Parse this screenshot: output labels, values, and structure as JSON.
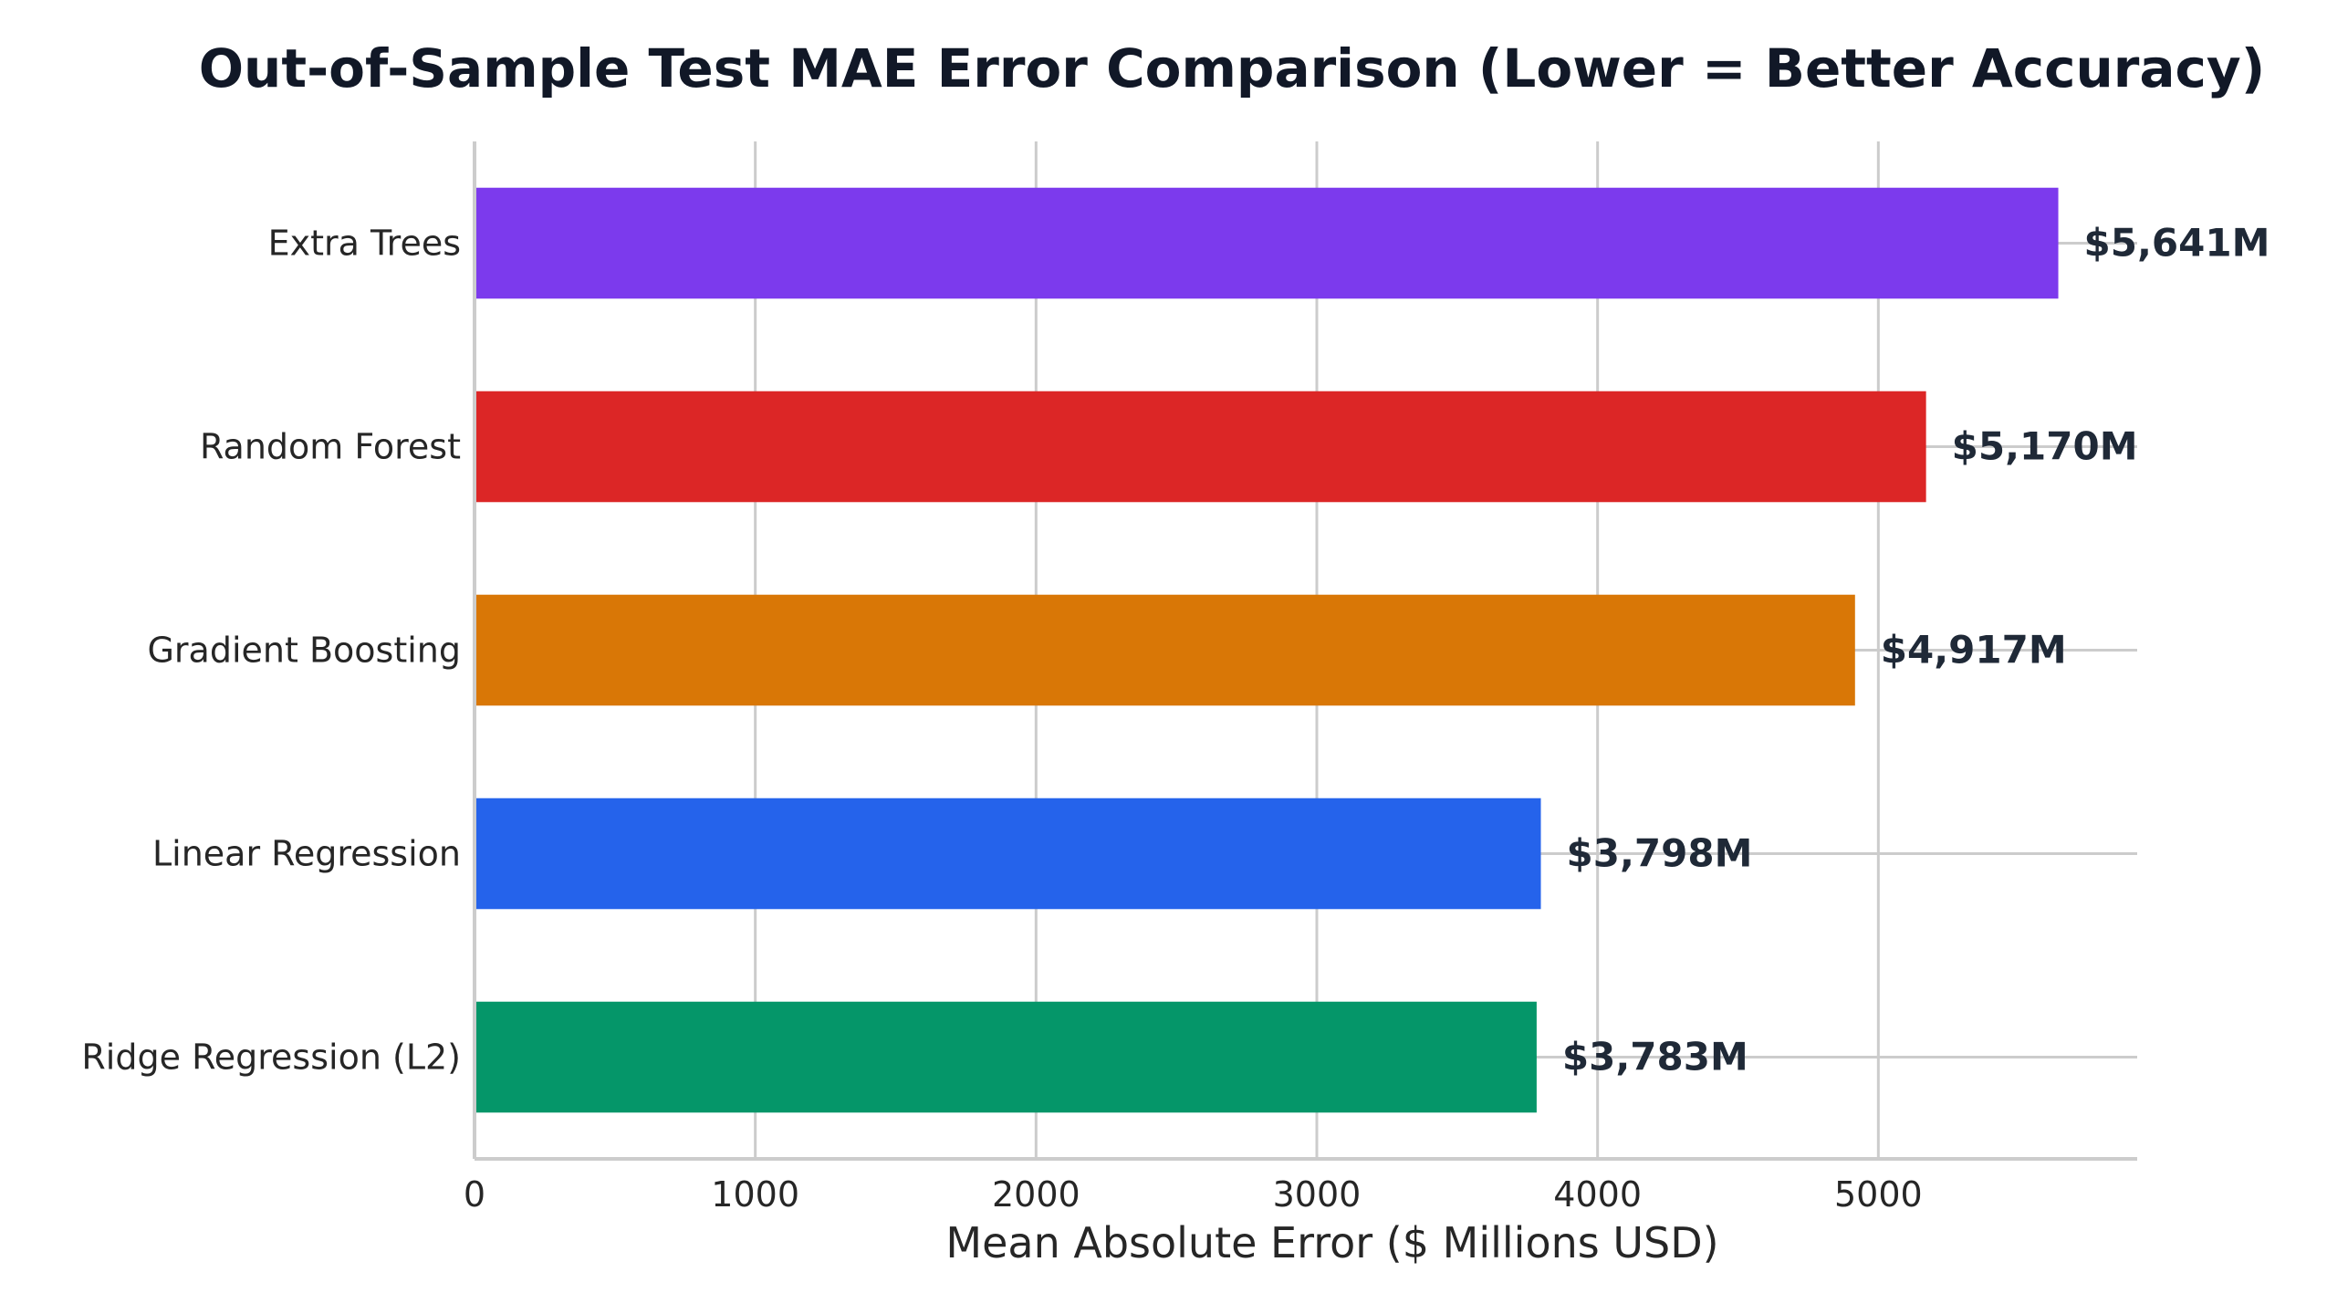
{
  "chart_data": {
    "type": "bar",
    "orientation": "horizontal",
    "title": "Out-of-Sample Test MAE Error Comparison (Lower = Better Accuracy)",
    "xlabel": "Mean Absolute Error ($ Millions USD)",
    "ylabel": "",
    "xlim": [
      0,
      5922
    ],
    "xticks": [
      "0",
      "1000",
      "2000",
      "3000",
      "4000",
      "5000"
    ],
    "grid": true,
    "categories": [
      "Extra Trees",
      "Random Forest",
      "Gradient Boosting",
      "Linear Regression",
      "Ridge Regression (L2)"
    ],
    "values": [
      5641,
      5170,
      4917,
      3798,
      3783
    ],
    "value_labels": [
      "$5,641M",
      "$5,170M",
      "$4,917M",
      "$3,798M",
      "$3,783M"
    ],
    "colors": [
      "#7c3aed",
      "#dc2626",
      "#d97706",
      "#2563eb",
      "#059669"
    ]
  }
}
